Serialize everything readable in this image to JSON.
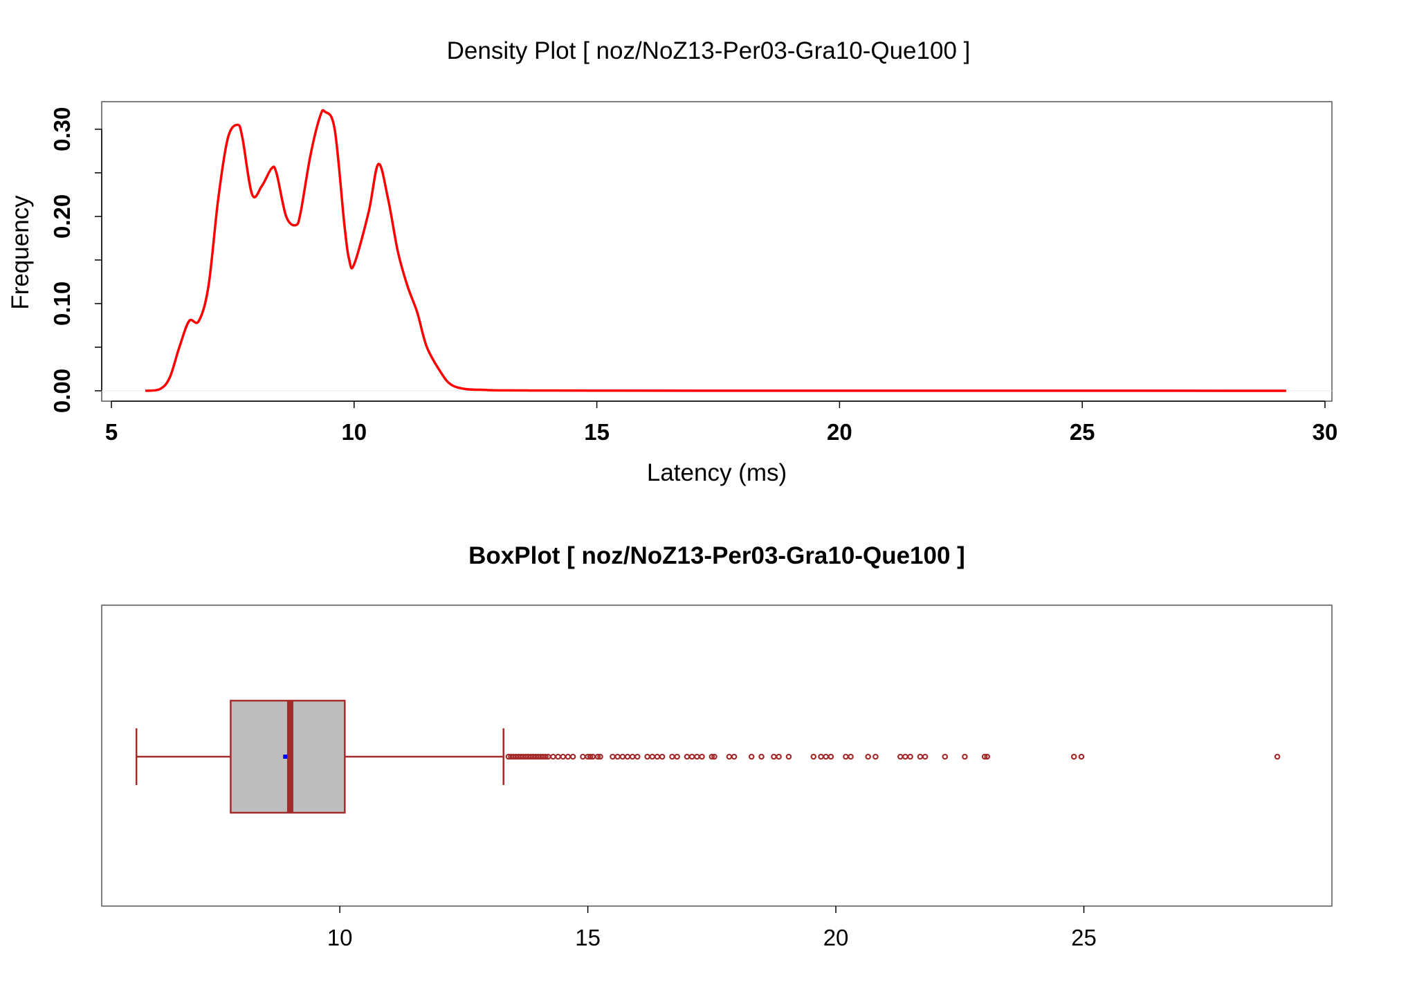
{
  "chart_data": [
    {
      "type": "line",
      "title": "Density Plot [ noz/NoZ13-Per03-Gra10-Que100 ]",
      "xlabel": "Latency (ms)",
      "ylabel": "Frequency",
      "xlim": [
        5,
        30
      ],
      "ylim": [
        0,
        0.33
      ],
      "x_ticks": [
        "5",
        "10",
        "15",
        "20",
        "25",
        "30"
      ],
      "y_ticks": [
        "0.00",
        "0.10",
        "0.20",
        "0.30"
      ],
      "line_color": "#ff0000",
      "grid": false,
      "series": [
        {
          "x": [
            5.7,
            6.0,
            6.2,
            6.4,
            6.6,
            6.8,
            7.0,
            7.2,
            7.4,
            7.6,
            7.7,
            7.9,
            8.1,
            8.3,
            8.4,
            8.6,
            8.8,
            8.9,
            9.1,
            9.3,
            9.4,
            9.6,
            9.8,
            9.9,
            10.0,
            10.3,
            10.5,
            10.7,
            10.9,
            11.1,
            11.3,
            11.5,
            11.8,
            12.0,
            12.3,
            12.7,
            13.0,
            14.0,
            15.0,
            20.0,
            25.0,
            29.2
          ],
          "y": [
            0.0,
            0.002,
            0.015,
            0.05,
            0.08,
            0.08,
            0.12,
            0.22,
            0.29,
            0.305,
            0.29,
            0.225,
            0.235,
            0.255,
            0.25,
            0.2,
            0.19,
            0.205,
            0.27,
            0.315,
            0.32,
            0.3,
            0.19,
            0.15,
            0.145,
            0.205,
            0.26,
            0.22,
            0.16,
            0.12,
            0.09,
            0.05,
            0.02,
            0.007,
            0.002,
            0.001,
            0.0005,
            0.0003,
            0.0002,
            0.0001,
            0.0001,
            0.0
          ]
        }
      ]
    },
    {
      "type": "box",
      "title": "BoxPlot [ noz/NoZ13-Per03-Gra10-Que100 ]",
      "orientation": "horizontal",
      "xlim": [
        5.2,
        30
      ],
      "x_ticks": [
        "10",
        "15",
        "20",
        "25"
      ],
      "box_fill": "#bebebe",
      "border_color": "#a52a2a",
      "mean_color": "#0000ff",
      "stats": {
        "whisker_low": 5.9,
        "q1": 7.8,
        "median": 9.0,
        "mean": 8.9,
        "q3": 10.1,
        "whisker_high": 13.3
      },
      "outliers": [
        13.4,
        13.45,
        13.5,
        13.55,
        13.6,
        13.65,
        13.7,
        13.75,
        13.8,
        13.85,
        13.9,
        13.95,
        14.0,
        14.05,
        14.1,
        14.15,
        14.2,
        14.3,
        14.4,
        14.5,
        14.6,
        14.7,
        14.9,
        15.0,
        15.05,
        15.1,
        15.2,
        15.25,
        15.5,
        15.6,
        15.7,
        15.8,
        15.9,
        16.0,
        16.2,
        16.3,
        16.4,
        16.5,
        16.7,
        16.8,
        17.0,
        17.1,
        17.2,
        17.3,
        17.5,
        17.55,
        17.85,
        17.95,
        18.3,
        18.5,
        18.75,
        18.85,
        19.05,
        19.55,
        19.7,
        19.8,
        19.9,
        20.2,
        20.3,
        20.65,
        20.8,
        21.3,
        21.4,
        21.5,
        21.7,
        21.8,
        22.2,
        22.6,
        23.0,
        23.05,
        24.8,
        24.95,
        28.9
      ]
    }
  ]
}
